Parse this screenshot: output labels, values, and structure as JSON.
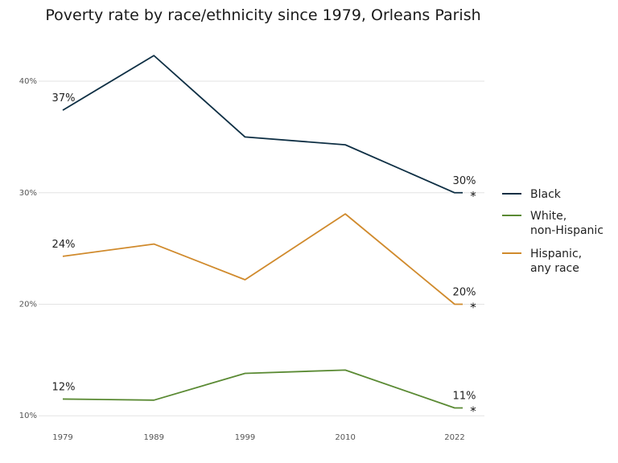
{
  "chart_data": {
    "type": "line",
    "title": "Poverty rate by race/ethnicity since 1979, Orleans Parish",
    "xlabel": "",
    "ylabel": "",
    "x": [
      1979,
      1989,
      1999,
      2010,
      2022
    ],
    "x_tick_labels": [
      "1979",
      "1989",
      "1999",
      "2010",
      "2022"
    ],
    "y_ticks": [
      10,
      20,
      30,
      40
    ],
    "y_tick_labels": [
      "10%",
      "20%",
      "30%",
      "40%"
    ],
    "ylim": [
      9.8,
      44.4
    ],
    "grid": true,
    "legend_position": "right",
    "series": [
      {
        "name": "Black",
        "legend_lines": [
          "Black"
        ],
        "color": "#0e2f44",
        "values": [
          37.4,
          42.3,
          35.0,
          34.3,
          30.0
        ],
        "start_label": "37%",
        "end_label": "30%",
        "end_marker": "*"
      },
      {
        "name": "White, non-Hispanic",
        "legend_lines": [
          "White,",
          "non-Hispanic"
        ],
        "color": "#5a8a33",
        "values": [
          11.5,
          11.4,
          13.8,
          14.1,
          10.7
        ],
        "start_label": "12%",
        "end_label": "11%",
        "end_marker": "*"
      },
      {
        "name": "Hispanic, any race",
        "legend_lines": [
          "Hispanic,",
          "any race"
        ],
        "color": "#d08a2c",
        "values": [
          24.3,
          25.4,
          22.2,
          28.1,
          20.0
        ],
        "start_label": "24%",
        "end_label": "20%",
        "end_marker": "*"
      }
    ]
  }
}
